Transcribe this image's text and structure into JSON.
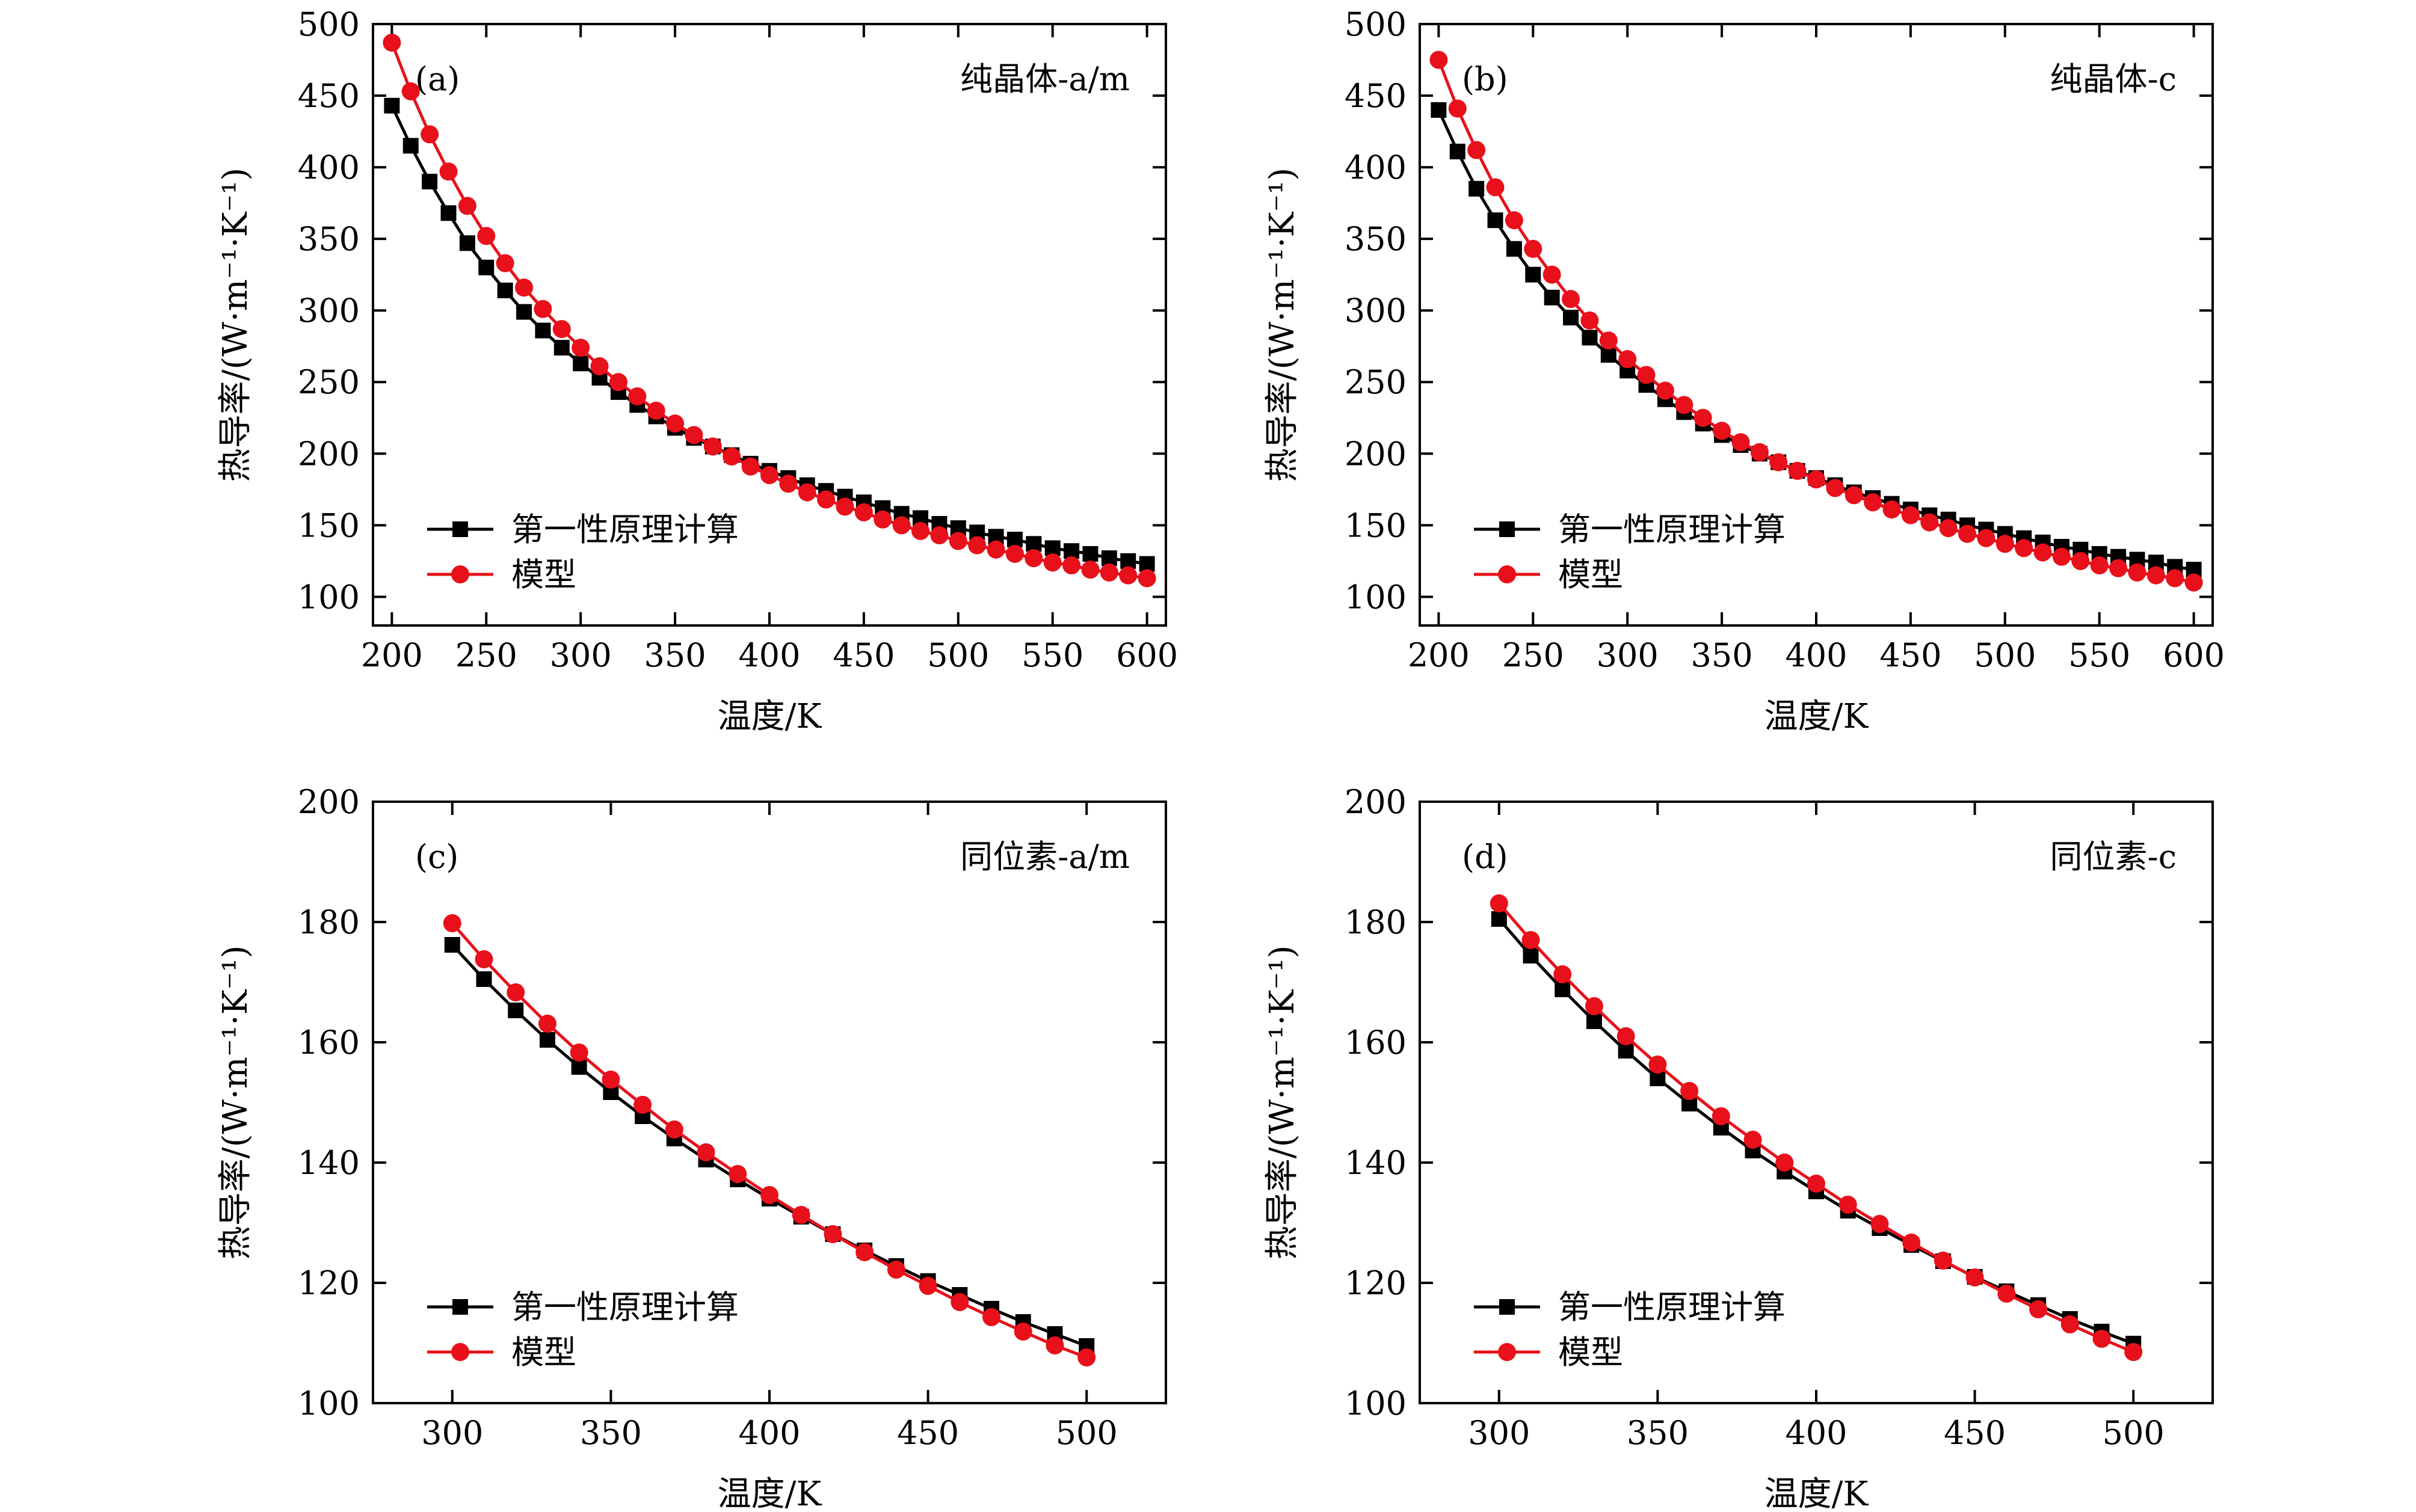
{
  "chart_data": [
    {
      "type": "line",
      "panel": "(a)",
      "title": "纯晶体-a/m",
      "xlabel": "温度/K",
      "ylabel": "热导率/(W·m⁻¹·K⁻¹)",
      "xlim": [
        190,
        610
      ],
      "ylim": [
        80,
        500
      ],
      "xticks": [
        200,
        250,
        300,
        350,
        400,
        450,
        500,
        550,
        600
      ],
      "yticks": [
        100,
        150,
        200,
        250,
        300,
        350,
        400,
        450,
        500
      ],
      "x": [
        200,
        210,
        220,
        230,
        240,
        250,
        260,
        270,
        280,
        290,
        300,
        310,
        320,
        330,
        340,
        350,
        360,
        370,
        380,
        390,
        400,
        410,
        420,
        430,
        440,
        450,
        460,
        470,
        480,
        490,
        500,
        510,
        520,
        530,
        540,
        550,
        560,
        570,
        580,
        590,
        600
      ],
      "series": [
        {
          "name": "第一性原理计算",
          "color": "#000000",
          "marker": "square",
          "values": [
            443,
            415,
            390,
            368,
            347,
            330,
            314,
            299,
            286,
            274,
            263,
            253,
            243,
            234,
            226,
            218,
            211,
            205,
            199,
            193,
            188,
            183,
            178,
            174,
            170,
            166,
            162,
            158,
            155,
            151,
            148,
            145,
            142,
            140,
            137,
            134,
            132,
            130,
            127,
            125,
            123
          ]
        },
        {
          "name": "模型",
          "color": "#e8101a",
          "marker": "circle",
          "values": [
            487,
            453,
            423,
            397,
            373,
            352,
            333,
            316,
            301,
            287,
            274,
            261,
            250,
            240,
            230,
            221,
            213,
            205,
            198,
            191,
            185,
            179,
            173,
            168,
            163,
            159,
            154,
            150,
            146,
            143,
            139,
            136,
            133,
            130,
            127,
            124,
            122,
            119,
            117,
            115,
            113
          ]
        }
      ],
      "legend": "bottom-left"
    },
    {
      "type": "line",
      "panel": "(b)",
      "title": "纯晶体-c",
      "xlabel": "温度/K",
      "ylabel": "热导率/(W·m⁻¹·K⁻¹)",
      "xlim": [
        190,
        610
      ],
      "ylim": [
        80,
        500
      ],
      "xticks": [
        200,
        250,
        300,
        350,
        400,
        450,
        500,
        550,
        600
      ],
      "yticks": [
        100,
        150,
        200,
        250,
        300,
        350,
        400,
        450,
        500
      ],
      "x": [
        200,
        210,
        220,
        230,
        240,
        250,
        260,
        270,
        280,
        290,
        300,
        310,
        320,
        330,
        340,
        350,
        360,
        370,
        380,
        390,
        400,
        410,
        420,
        430,
        440,
        450,
        460,
        470,
        480,
        490,
        500,
        510,
        520,
        530,
        540,
        550,
        560,
        570,
        580,
        590,
        600
      ],
      "series": [
        {
          "name": "第一性原理计算",
          "color": "#000000",
          "marker": "square",
          "values": [
            440,
            411,
            385,
            363,
            343,
            325,
            309,
            295,
            281,
            269,
            258,
            248,
            238,
            229,
            221,
            213,
            206,
            200,
            194,
            188,
            183,
            178,
            173,
            169,
            165,
            161,
            157,
            154,
            150,
            147,
            144,
            141,
            138,
            135,
            133,
            130,
            128,
            126,
            124,
            121,
            119
          ]
        },
        {
          "name": "模型",
          "color": "#e8101a",
          "marker": "circle",
          "values": [
            475,
            441,
            412,
            386,
            363,
            343,
            325,
            308,
            293,
            279,
            266,
            255,
            244,
            234,
            225,
            216,
            208,
            201,
            194,
            188,
            182,
            176,
            171,
            166,
            161,
            157,
            152,
            148,
            144,
            141,
            137,
            134,
            131,
            128,
            125,
            122,
            120,
            117,
            115,
            113,
            110
          ]
        }
      ],
      "legend": "bottom-left"
    },
    {
      "type": "line",
      "panel": "(c)",
      "title": "同位素-a/m",
      "xlabel": "温度/K",
      "ylabel": "热导率/(W·m⁻¹·K⁻¹)",
      "xlim": [
        275,
        525
      ],
      "ylim": [
        100,
        200
      ],
      "xticks": [
        300,
        350,
        400,
        450,
        500
      ],
      "yticks": [
        100,
        120,
        140,
        160,
        180,
        200
      ],
      "x": [
        300,
        310,
        320,
        330,
        340,
        350,
        360,
        370,
        380,
        390,
        400,
        410,
        420,
        430,
        440,
        450,
        460,
        470,
        480,
        490,
        500
      ],
      "series": [
        {
          "name": "第一性原理计算",
          "color": "#000000",
          "marker": "square",
          "values": [
            176.2,
            170.5,
            165.3,
            160.4,
            155.9,
            151.7,
            147.7,
            144.0,
            140.5,
            137.2,
            134.0,
            131.0,
            128.1,
            125.4,
            122.8,
            120.3,
            118.0,
            115.7,
            113.5,
            111.5,
            109.5
          ]
        },
        {
          "name": "模型",
          "color": "#e8101a",
          "marker": "circle",
          "values": [
            179.8,
            173.8,
            168.3,
            163.1,
            158.3,
            153.8,
            149.6,
            145.5,
            141.7,
            138.1,
            134.6,
            131.3,
            128.1,
            125.1,
            122.2,
            119.5,
            116.8,
            114.3,
            111.9,
            109.6,
            107.6
          ]
        }
      ],
      "legend": "bottom-left"
    },
    {
      "type": "line",
      "panel": "(d)",
      "title": "同位素-c",
      "xlabel": "温度/K",
      "ylabel": "热导率/(W·m⁻¹·K⁻¹)",
      "xlim": [
        275,
        525
      ],
      "ylim": [
        100,
        200
      ],
      "xticks": [
        300,
        350,
        400,
        450,
        500
      ],
      "yticks": [
        100,
        120,
        140,
        160,
        180,
        200
      ],
      "x": [
        300,
        310,
        320,
        330,
        340,
        350,
        360,
        370,
        380,
        390,
        400,
        410,
        420,
        430,
        440,
        450,
        460,
        470,
        480,
        490,
        500
      ],
      "series": [
        {
          "name": "第一性原理计算",
          "color": "#000000",
          "marker": "square",
          "values": [
            180.5,
            174.4,
            168.8,
            163.5,
            158.6,
            154.0,
            149.8,
            145.8,
            142.0,
            138.5,
            135.2,
            132.0,
            129.1,
            126.3,
            123.6,
            121.0,
            118.6,
            116.3,
            114.0,
            111.9,
            109.9
          ]
        },
        {
          "name": "模型",
          "color": "#e8101a",
          "marker": "circle",
          "values": [
            183.1,
            177.0,
            171.3,
            166.0,
            161.0,
            156.3,
            151.9,
            147.7,
            143.8,
            140.0,
            136.5,
            133.0,
            129.8,
            126.7,
            123.7,
            120.9,
            118.2,
            115.6,
            113.1,
            110.7,
            108.5
          ]
        }
      ],
      "legend": "bottom-left"
    }
  ]
}
